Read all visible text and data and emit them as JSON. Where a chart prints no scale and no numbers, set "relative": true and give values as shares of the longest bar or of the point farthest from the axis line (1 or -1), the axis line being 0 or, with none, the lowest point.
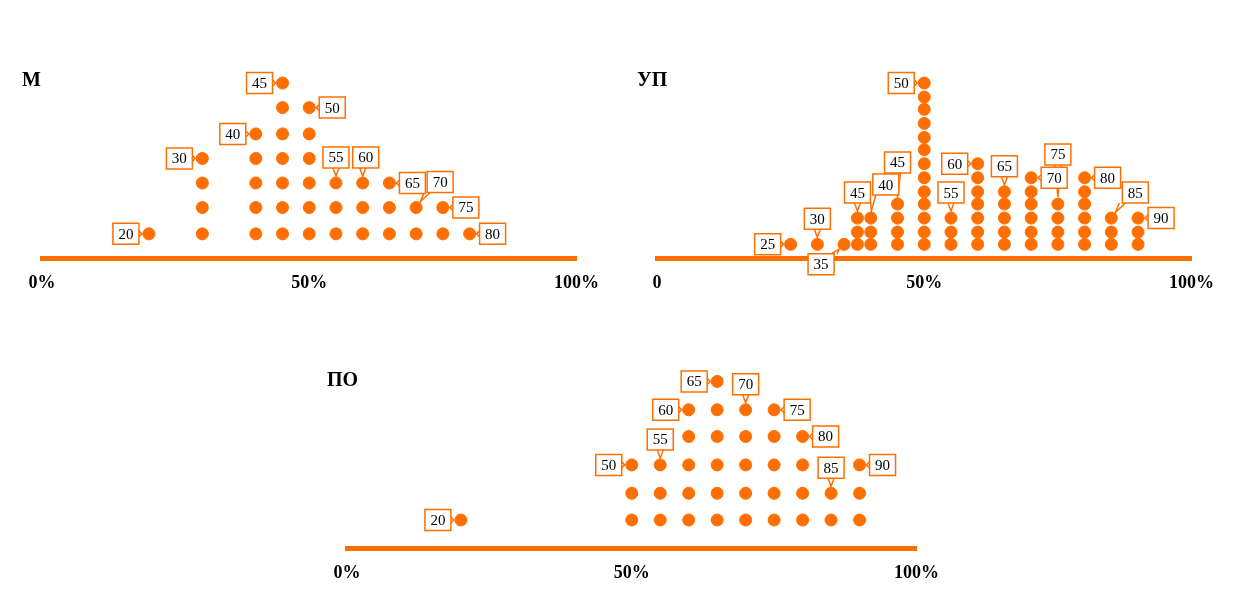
{
  "chart_data": [
    {
      "type": "scatter",
      "title": "М",
      "relative": true,
      "marker": "circle",
      "xlim": [
        0,
        100
      ],
      "xticks": [
        {
          "value": 0,
          "label": "0%"
        },
        {
          "value": 50,
          "label": "50%"
        },
        {
          "value": 100,
          "label": "100%"
        }
      ],
      "series": [
        {
          "color": "#ff6f00",
          "x": [
            20,
            30,
            30,
            30,
            30,
            40,
            40,
            40,
            40,
            40,
            45,
            45,
            45,
            45,
            45,
            45,
            45,
            50,
            50,
            50,
            50,
            50,
            50,
            55,
            55,
            55,
            60,
            60,
            60,
            65,
            65,
            65,
            70,
            70,
            75,
            75,
            80
          ],
          "values": [
            0.14,
            0.14,
            0.29,
            0.43,
            0.57,
            0.14,
            0.29,
            0.43,
            0.57,
            0.71,
            0.14,
            0.29,
            0.43,
            0.57,
            0.71,
            0.86,
            1,
            0.14,
            0.29,
            0.43,
            0.57,
            0.71,
            0.86,
            0.14,
            0.29,
            0.43,
            0.14,
            0.29,
            0.43,
            0.14,
            0.29,
            0.43,
            0.14,
            0.29,
            0.14,
            0.29,
            0.14
          ]
        }
      ],
      "annotations": [
        {
          "text": "20",
          "x": 20,
          "y": 0.14
        },
        {
          "text": "30",
          "x": 30,
          "y": 0.57
        },
        {
          "text": "40",
          "x": 40,
          "y": 0.71
        },
        {
          "text": "45",
          "x": 45,
          "y": 1
        },
        {
          "text": "50",
          "x": 50,
          "y": 0.86
        },
        {
          "text": "55",
          "x": 55,
          "y": 0.43
        },
        {
          "text": "60",
          "x": 60,
          "y": 0.43
        },
        {
          "text": "65",
          "x": 65,
          "y": 0.43
        },
        {
          "text": "70",
          "x": 70,
          "y": 0.29
        },
        {
          "text": "75",
          "x": 75,
          "y": 0.29
        },
        {
          "text": "80",
          "x": 80,
          "y": 0.14
        }
      ]
    },
    {
      "type": "scatter",
      "title": "УП",
      "relative": true,
      "marker": "circle",
      "xlim": [
        0,
        100
      ],
      "xticks": [
        {
          "value": 0,
          "label": "0"
        },
        {
          "value": 50,
          "label": "50%"
        },
        {
          "value": 100,
          "label": "100%"
        }
      ],
      "series": [
        {
          "color": "#ff6f00",
          "x": [
            25,
            30,
            35,
            37.5,
            37.5,
            37.5,
            40,
            40,
            40,
            45,
            45,
            45,
            45,
            50,
            50,
            50,
            50,
            50,
            50,
            50,
            50,
            50,
            50,
            50,
            50,
            50,
            55,
            55,
            55,
            60,
            60,
            60,
            60,
            60,
            60,
            60,
            65,
            65,
            65,
            65,
            65,
            70,
            70,
            70,
            70,
            70,
            70,
            75,
            75,
            75,
            75,
            80,
            80,
            80,
            80,
            80,
            80,
            85,
            85,
            85,
            90,
            90,
            90
          ],
          "values": [
            0.08,
            0.08,
            0.08,
            0.08,
            0.15,
            0.23,
            0.08,
            0.15,
            0.23,
            0.08,
            0.15,
            0.23,
            0.31,
            0.08,
            0.15,
            0.23,
            0.31,
            0.38,
            0.46,
            0.54,
            0.62,
            0.69,
            0.77,
            0.85,
            0.92,
            1,
            0.08,
            0.15,
            0.23,
            0.08,
            0.15,
            0.23,
            0.31,
            0.38,
            0.46,
            0.54,
            0.08,
            0.15,
            0.23,
            0.31,
            0.38,
            0.08,
            0.15,
            0.23,
            0.31,
            0.38,
            0.46,
            0.08,
            0.15,
            0.23,
            0.31,
            0.08,
            0.15,
            0.23,
            0.31,
            0.38,
            0.46,
            0.08,
            0.15,
            0.23,
            0.08,
            0.15,
            0.23
          ]
        }
      ],
      "annotations": [
        {
          "text": "25",
          "x": 25,
          "y": 0.08
        },
        {
          "text": "30",
          "x": 30,
          "y": 0.08
        },
        {
          "text": "35",
          "x": 35,
          "y": 0.08
        },
        {
          "text": "45",
          "x": 37.5,
          "y": 0.23
        },
        {
          "text": "40",
          "x": 40,
          "y": 0.23
        },
        {
          "text": "45",
          "x": 45,
          "y": 0.31
        },
        {
          "text": "50",
          "x": 50,
          "y": 1
        },
        {
          "text": "55",
          "x": 55,
          "y": 0.23
        },
        {
          "text": "60",
          "x": 60,
          "y": 0.54
        },
        {
          "text": "65",
          "x": 65,
          "y": 0.38
        },
        {
          "text": "70",
          "x": 70,
          "y": 0.46
        },
        {
          "text": "75",
          "x": 75,
          "y": 0.31
        },
        {
          "text": "80",
          "x": 80,
          "y": 0.46
        },
        {
          "text": "85",
          "x": 85,
          "y": 0.23
        },
        {
          "text": "90",
          "x": 90,
          "y": 0.23
        }
      ]
    },
    {
      "type": "scatter",
      "title": "ПО",
      "relative": true,
      "marker": "circle",
      "xlim": [
        0,
        100
      ],
      "xticks": [
        {
          "value": 0,
          "label": "0%"
        },
        {
          "value": 50,
          "label": "50%"
        },
        {
          "value": 100,
          "label": "100%"
        }
      ],
      "series": [
        {
          "color": "#ff6f00",
          "x": [
            20,
            50,
            50,
            50,
            55,
            55,
            55,
            60,
            60,
            60,
            60,
            60,
            65,
            65,
            65,
            65,
            65,
            65,
            70,
            70,
            70,
            70,
            70,
            75,
            75,
            75,
            75,
            75,
            80,
            80,
            80,
            80,
            85,
            85,
            90,
            90,
            90
          ],
          "values": [
            0.17,
            0.17,
            0.33,
            0.5,
            0.17,
            0.33,
            0.5,
            0.17,
            0.33,
            0.5,
            0.67,
            0.83,
            0.17,
            0.33,
            0.5,
            0.67,
            0.83,
            1,
            0.17,
            0.33,
            0.5,
            0.67,
            0.83,
            0.17,
            0.33,
            0.5,
            0.67,
            0.83,
            0.17,
            0.33,
            0.5,
            0.67,
            0.17,
            0.33,
            0.17,
            0.33,
            0.5
          ]
        }
      ],
      "annotations": [
        {
          "text": "20",
          "x": 20,
          "y": 0.17
        },
        {
          "text": "50",
          "x": 50,
          "y": 0.5
        },
        {
          "text": "55",
          "x": 55,
          "y": 0.5
        },
        {
          "text": "60",
          "x": 60,
          "y": 0.83
        },
        {
          "text": "65",
          "x": 65,
          "y": 1
        },
        {
          "text": "70",
          "x": 70,
          "y": 0.83
        },
        {
          "text": "75",
          "x": 75,
          "y": 0.83
        },
        {
          "text": "80",
          "x": 80,
          "y": 0.67
        },
        {
          "text": "85",
          "x": 85,
          "y": 0.33
        },
        {
          "text": "90",
          "x": 90,
          "y": 0.5
        }
      ]
    }
  ]
}
